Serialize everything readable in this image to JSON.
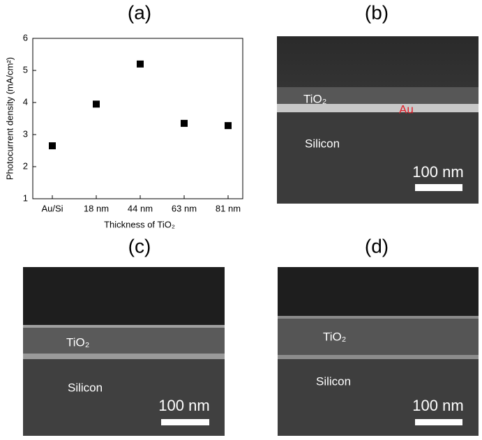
{
  "panel_labels": [
    "(a)",
    "(b)",
    "(c)",
    "(d)"
  ],
  "chart_data": {
    "type": "scatter",
    "categories": [
      "Au/Si",
      "18 nm",
      "44 nm",
      "63 nm",
      "81 nm"
    ],
    "values": [
      2.65,
      3.95,
      5.2,
      3.35,
      3.28
    ],
    "color": "#000000",
    "ylim": [
      1,
      6
    ],
    "yticks": [
      1,
      2,
      3,
      4,
      5,
      6
    ],
    "x_label": "Thickness of TiO₂",
    "y_label": "Photocurrent density (mA/cm²)"
  },
  "images": [
    {
      "layer_labels": [
        "TiO₂",
        "Au",
        "Silicon"
      ],
      "scale": "100 nm"
    },
    {
      "layer_labels": [
        "TiO₂",
        "Silicon"
      ],
      "scale": "100 nm"
    },
    {
      "layer_labels": [
        "TiO₂",
        "Silicon"
      ],
      "scale": "100 nm"
    }
  ]
}
